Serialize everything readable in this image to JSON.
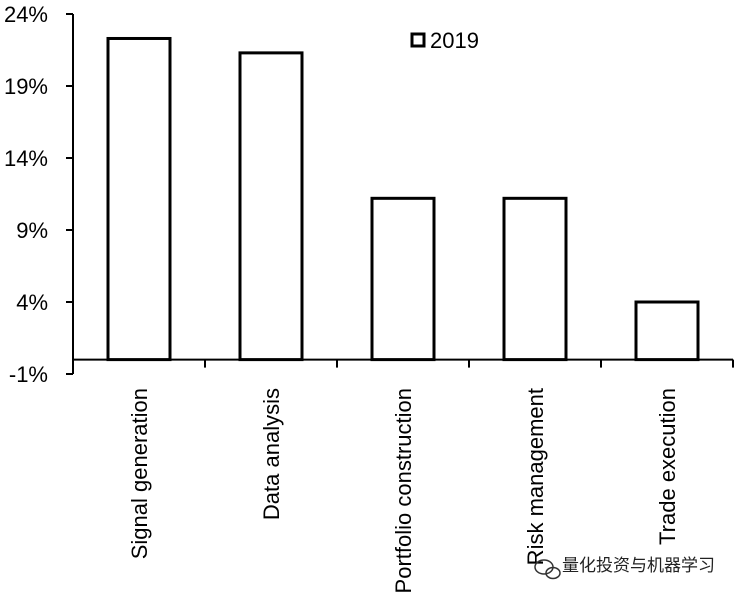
{
  "chart_data": {
    "type": "bar",
    "categories": [
      "Signal generation",
      "Data analysis",
      "Portfolio construction",
      "Risk management",
      "Trade execution"
    ],
    "series": [
      {
        "name": "2019",
        "values": [
          22.3,
          21.3,
          11.2,
          11.2,
          4.0
        ]
      }
    ],
    "yticks": [
      -1,
      4,
      9,
      14,
      19,
      24
    ],
    "ytick_labels": [
      "-1%",
      "4%",
      "9%",
      "14%",
      "19%",
      "24%"
    ],
    "ylim": [
      -1,
      24
    ],
    "legend_position": "top-right",
    "grid": false,
    "bar_fill": "#ffffff",
    "bar_stroke": "#000000"
  },
  "watermark": {
    "text": "量化投资与机器学习",
    "icon": "wechat-icon"
  }
}
